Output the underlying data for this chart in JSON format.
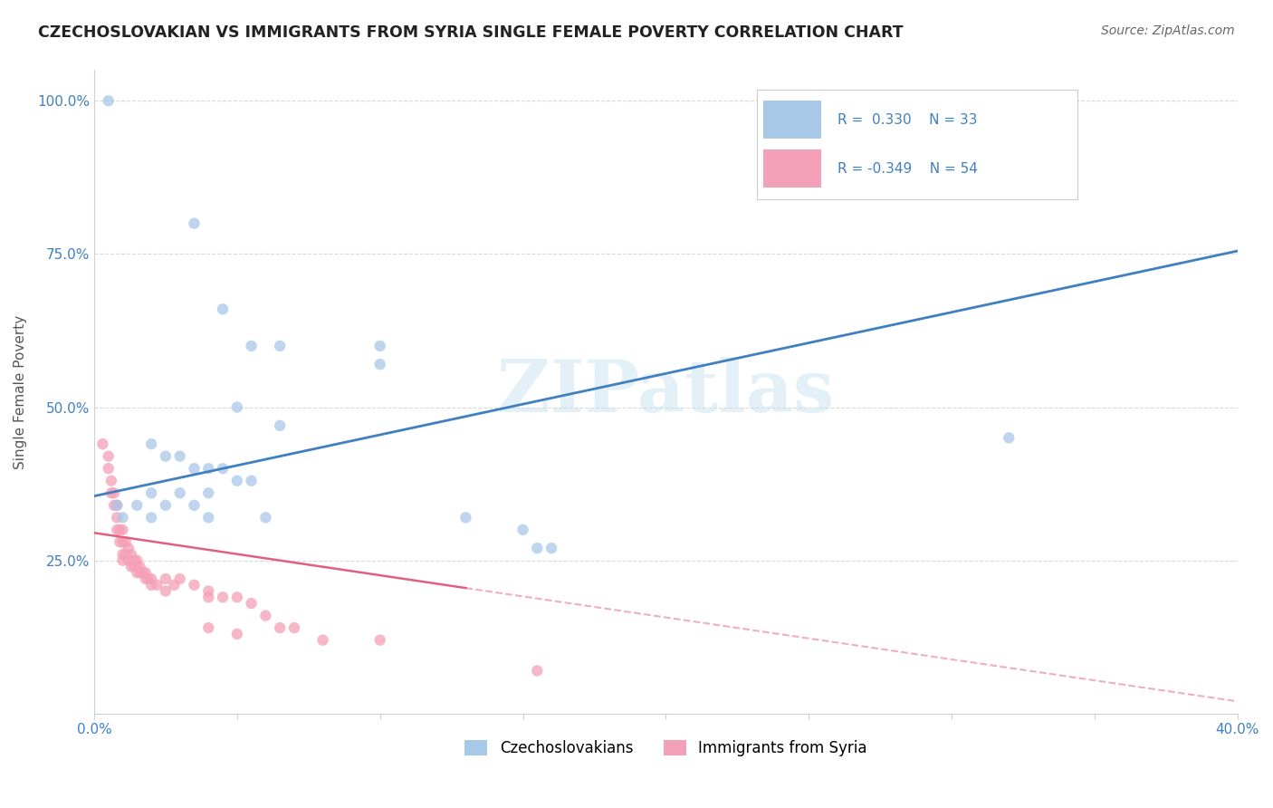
{
  "title": "CZECHOSLOVAKIAN VS IMMIGRANTS FROM SYRIA SINGLE FEMALE POVERTY CORRELATION CHART",
  "source": "Source: ZipAtlas.com",
  "ylabel": "Single Female Poverty",
  "xlim": [
    0.0,
    0.4
  ],
  "ylim": [
    0.0,
    1.05
  ],
  "ytick_labels": [
    "25.0%",
    "50.0%",
    "75.0%",
    "100.0%"
  ],
  "ytick_vals": [
    0.25,
    0.5,
    0.75,
    1.0
  ],
  "watermark": "ZIPatlas",
  "legend_r1": "R =  0.330",
  "legend_n1": "N = 33",
  "legend_r2": "R = -0.349",
  "legend_n2": "N = 54",
  "blue_color": "#a8c8e8",
  "pink_color": "#f4a0b8",
  "blue_line_color": "#4080c0",
  "pink_line_color": "#e06080",
  "grid_color": "#d0d0d0",
  "background_color": "#ffffff",
  "blue_line_x0": 0.0,
  "blue_line_y0": 0.355,
  "blue_line_x1": 0.4,
  "blue_line_y1": 0.755,
  "pink_line_solid_x0": 0.0,
  "pink_line_solid_y0": 0.295,
  "pink_line_solid_x1": 0.13,
  "pink_line_solid_y1": 0.205,
  "pink_line_dash_x0": 0.13,
  "pink_line_dash_y0": 0.205,
  "pink_line_dash_x1": 0.4,
  "pink_line_dash_y1": 0.02,
  "czecho_points": [
    [
      0.005,
      1.0
    ],
    [
      0.035,
      0.8
    ],
    [
      0.045,
      0.66
    ],
    [
      0.055,
      0.6
    ],
    [
      0.065,
      0.6
    ],
    [
      0.1,
      0.6
    ],
    [
      0.1,
      0.57
    ],
    [
      0.05,
      0.5
    ],
    [
      0.065,
      0.47
    ],
    [
      0.02,
      0.44
    ],
    [
      0.025,
      0.42
    ],
    [
      0.03,
      0.42
    ],
    [
      0.035,
      0.4
    ],
    [
      0.04,
      0.4
    ],
    [
      0.045,
      0.4
    ],
    [
      0.05,
      0.38
    ],
    [
      0.055,
      0.38
    ],
    [
      0.02,
      0.36
    ],
    [
      0.03,
      0.36
    ],
    [
      0.04,
      0.36
    ],
    [
      0.008,
      0.34
    ],
    [
      0.015,
      0.34
    ],
    [
      0.025,
      0.34
    ],
    [
      0.035,
      0.34
    ],
    [
      0.01,
      0.32
    ],
    [
      0.02,
      0.32
    ],
    [
      0.04,
      0.32
    ],
    [
      0.06,
      0.32
    ],
    [
      0.13,
      0.32
    ],
    [
      0.15,
      0.3
    ],
    [
      0.155,
      0.27
    ],
    [
      0.16,
      0.27
    ],
    [
      0.32,
      0.45
    ]
  ],
  "syria_points": [
    [
      0.003,
      0.44
    ],
    [
      0.005,
      0.42
    ],
    [
      0.005,
      0.4
    ],
    [
      0.006,
      0.38
    ],
    [
      0.006,
      0.36
    ],
    [
      0.007,
      0.36
    ],
    [
      0.007,
      0.34
    ],
    [
      0.008,
      0.34
    ],
    [
      0.008,
      0.32
    ],
    [
      0.008,
      0.3
    ],
    [
      0.009,
      0.3
    ],
    [
      0.009,
      0.28
    ],
    [
      0.01,
      0.3
    ],
    [
      0.01,
      0.28
    ],
    [
      0.01,
      0.26
    ],
    [
      0.01,
      0.25
    ],
    [
      0.011,
      0.28
    ],
    [
      0.011,
      0.26
    ],
    [
      0.012,
      0.27
    ],
    [
      0.012,
      0.25
    ],
    [
      0.013,
      0.26
    ],
    [
      0.013,
      0.24
    ],
    [
      0.014,
      0.25
    ],
    [
      0.014,
      0.24
    ],
    [
      0.015,
      0.25
    ],
    [
      0.015,
      0.24
    ],
    [
      0.015,
      0.23
    ],
    [
      0.016,
      0.24
    ],
    [
      0.016,
      0.23
    ],
    [
      0.017,
      0.23
    ],
    [
      0.018,
      0.23
    ],
    [
      0.018,
      0.22
    ],
    [
      0.019,
      0.22
    ],
    [
      0.02,
      0.22
    ],
    [
      0.02,
      0.21
    ],
    [
      0.022,
      0.21
    ],
    [
      0.025,
      0.22
    ],
    [
      0.025,
      0.2
    ],
    [
      0.028,
      0.21
    ],
    [
      0.03,
      0.22
    ],
    [
      0.035,
      0.21
    ],
    [
      0.04,
      0.2
    ],
    [
      0.04,
      0.19
    ],
    [
      0.04,
      0.14
    ],
    [
      0.045,
      0.19
    ],
    [
      0.05,
      0.19
    ],
    [
      0.05,
      0.13
    ],
    [
      0.055,
      0.18
    ],
    [
      0.06,
      0.16
    ],
    [
      0.065,
      0.14
    ],
    [
      0.07,
      0.14
    ],
    [
      0.08,
      0.12
    ],
    [
      0.1,
      0.12
    ],
    [
      0.155,
      0.07
    ]
  ]
}
